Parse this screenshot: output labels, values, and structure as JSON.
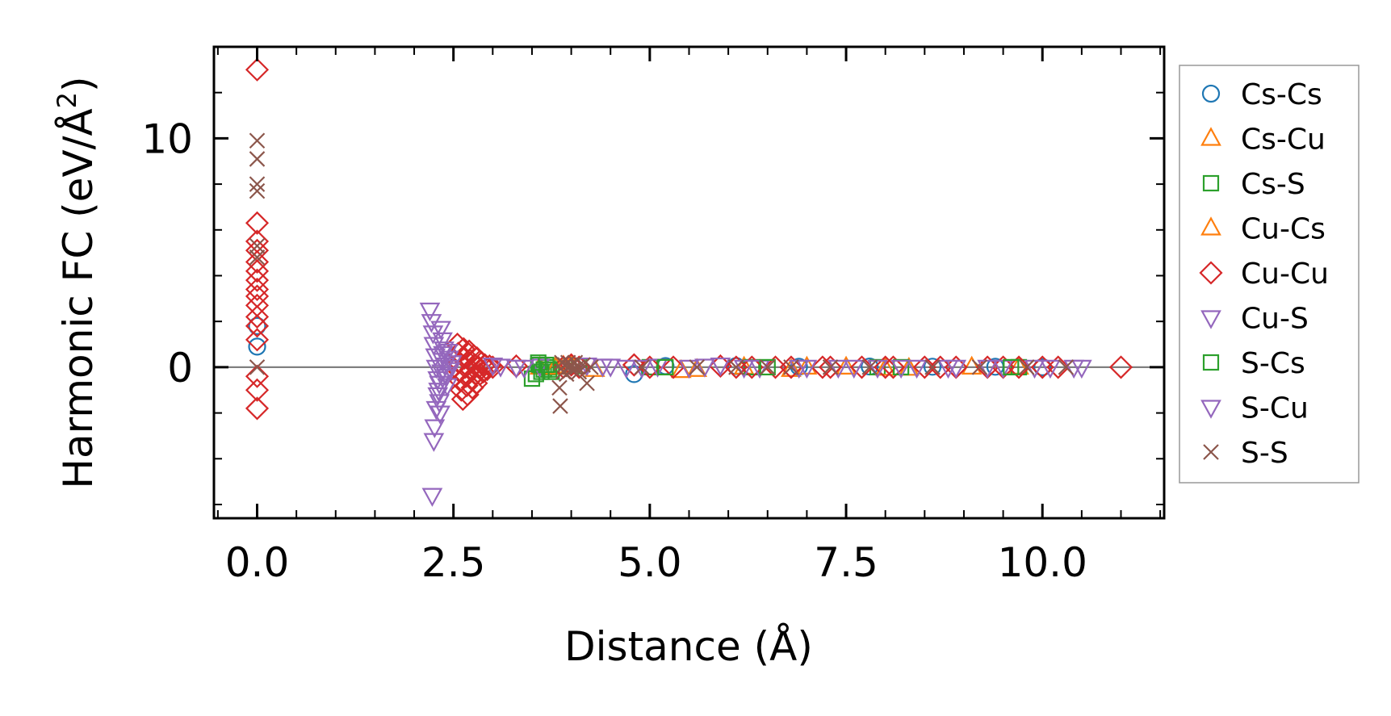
{
  "chart_data": {
    "type": "scatter",
    "xlabel": "Distance (Å)",
    "ylabel_main": "Harmonic FC (eV/Å",
    "ylabel_sup": "2",
    "ylabel_close": ")",
    "xlim": [
      -0.55,
      11.55
    ],
    "ylim": [
      -6.6,
      14.0
    ],
    "x_ticks": [
      0.0,
      2.5,
      5.0,
      7.5,
      10.0
    ],
    "x_tick_labels": [
      "0.0",
      "2.5",
      "5.0",
      "7.5",
      "10.0"
    ],
    "y_ticks": [
      0,
      10
    ],
    "y_tick_labels": [
      "0",
      "10"
    ],
    "zero_line": true,
    "grid": false,
    "legend_position": "right",
    "series": [
      {
        "name": "Cs-Cs",
        "marker": "circle",
        "color": "#1f77b4",
        "points": [
          [
            0,
            1.8
          ],
          [
            0,
            0.9
          ],
          [
            4.8,
            -0.3
          ],
          [
            5.2,
            0.05
          ],
          [
            6.1,
            0.05
          ],
          [
            6.9,
            0.02
          ],
          [
            7.8,
            0.03
          ],
          [
            8.6,
            0.02
          ],
          [
            9.4,
            0.02
          ],
          [
            10.0,
            0.0
          ]
        ]
      },
      {
        "name": "Cs-Cu",
        "marker": "triangle-up",
        "color": "#ff7f0e",
        "points": [
          [
            3.6,
            0.0
          ],
          [
            3.9,
            0.05
          ],
          [
            4.3,
            -0.1
          ],
          [
            5.4,
            -0.15
          ],
          [
            6.2,
            0.0
          ],
          [
            6.8,
            -0.1
          ],
          [
            7.5,
            0.0
          ],
          [
            8.3,
            -0.05
          ],
          [
            9.1,
            0.0
          ],
          [
            9.7,
            0.0
          ]
        ]
      },
      {
        "name": "Cs-S",
        "marker": "square",
        "color": "#2ca02c",
        "points": [
          [
            3.5,
            -0.5
          ],
          [
            3.55,
            -0.3
          ],
          [
            3.6,
            0.1
          ],
          [
            3.65,
            -0.1
          ],
          [
            3.7,
            0.0
          ],
          [
            3.75,
            -0.2
          ],
          [
            4.1,
            0.05
          ],
          [
            5.0,
            0.0
          ],
          [
            6.3,
            0.0
          ],
          [
            7.9,
            0.0
          ],
          [
            9.7,
            0.0
          ]
        ]
      },
      {
        "name": "Cu-Cs",
        "marker": "triangle-up",
        "color": "#ff7f0e",
        "points": [
          [
            3.8,
            0.0
          ],
          [
            4.0,
            0.1
          ],
          [
            5.6,
            -0.1
          ],
          [
            7.0,
            0.0
          ],
          [
            8.0,
            -0.05
          ]
        ]
      },
      {
        "name": "Cu-Cu",
        "marker": "diamond",
        "color": "#d62728",
        "points": [
          [
            0,
            13.0
          ],
          [
            0,
            6.3
          ],
          [
            0,
            5.5
          ],
          [
            0,
            5.1
          ],
          [
            0,
            4.6
          ],
          [
            0,
            4.2
          ],
          [
            0,
            3.8
          ],
          [
            0,
            3.4
          ],
          [
            0,
            3.1
          ],
          [
            0,
            2.7
          ],
          [
            0,
            2.2
          ],
          [
            0,
            1.8
          ],
          [
            0,
            1.2
          ],
          [
            0,
            -0.4
          ],
          [
            0,
            -1.0
          ],
          [
            0,
            -1.8
          ],
          [
            2.55,
            1.0
          ],
          [
            2.56,
            0.6
          ],
          [
            2.57,
            0.2
          ],
          [
            2.58,
            -0.2
          ],
          [
            2.59,
            -0.6
          ],
          [
            2.6,
            -1.0
          ],
          [
            2.62,
            -1.4
          ],
          [
            2.63,
            0.8
          ],
          [
            2.64,
            0.4
          ],
          [
            2.65,
            0.0
          ],
          [
            2.66,
            -0.4
          ],
          [
            2.67,
            -0.8
          ],
          [
            2.68,
            -1.2
          ],
          [
            2.7,
            0.7
          ],
          [
            2.71,
            0.3
          ],
          [
            2.72,
            -0.1
          ],
          [
            2.73,
            -0.5
          ],
          [
            2.74,
            -0.9
          ],
          [
            2.76,
            0.5
          ],
          [
            2.77,
            0.1
          ],
          [
            2.78,
            -0.3
          ],
          [
            2.79,
            -0.7
          ],
          [
            2.8,
            0.4
          ],
          [
            2.82,
            0.0
          ],
          [
            2.84,
            -0.3
          ],
          [
            2.86,
            0.2
          ],
          [
            2.88,
            -0.2
          ],
          [
            2.9,
            0.1
          ],
          [
            2.93,
            -0.1
          ],
          [
            2.96,
            0.05
          ],
          [
            3.0,
            0.0
          ],
          [
            3.3,
            0.05
          ],
          [
            3.9,
            0.0
          ],
          [
            4.0,
            0.1
          ],
          [
            4.1,
            0.0
          ],
          [
            4.8,
            0.1
          ],
          [
            5.0,
            0.0
          ],
          [
            5.3,
            0.0
          ],
          [
            5.9,
            0.05
          ],
          [
            6.1,
            0.0
          ],
          [
            6.3,
            0.0
          ],
          [
            6.6,
            0.0
          ],
          [
            6.8,
            0.0
          ],
          [
            7.2,
            0.0
          ],
          [
            7.3,
            0.0
          ],
          [
            7.7,
            0.0
          ],
          [
            8.0,
            0.0
          ],
          [
            8.1,
            0.0
          ],
          [
            8.5,
            0.0
          ],
          [
            8.7,
            0.0
          ],
          [
            8.9,
            0.0
          ],
          [
            9.3,
            0.0
          ],
          [
            9.5,
            0.0
          ],
          [
            9.7,
            0.0
          ],
          [
            10.0,
            0.0
          ],
          [
            10.2,
            0.0
          ],
          [
            11.0,
            0.0
          ]
        ]
      },
      {
        "name": "Cu-S",
        "marker": "triangle-down",
        "color": "#9467bd",
        "points": [
          [
            2.2,
            2.5
          ],
          [
            2.22,
            2.0
          ],
          [
            2.24,
            1.5
          ],
          [
            2.25,
            1.0
          ],
          [
            2.27,
            0.5
          ],
          [
            2.28,
            0.0
          ],
          [
            2.3,
            -0.5
          ],
          [
            2.31,
            -1.0
          ],
          [
            2.32,
            -1.5
          ],
          [
            2.33,
            -2.0
          ],
          [
            2.35,
            -0.2
          ],
          [
            2.36,
            0.3
          ],
          [
            2.38,
            0.8
          ],
          [
            2.4,
            -0.3
          ],
          [
            2.42,
            -0.8
          ],
          [
            2.44,
            0.4
          ],
          [
            2.46,
            -0.1
          ],
          [
            2.48,
            0.2
          ],
          [
            3.0,
            0.1
          ],
          [
            3.3,
            0.0
          ],
          [
            3.6,
            0.05
          ],
          [
            4.2,
            0.1
          ],
          [
            4.5,
            0.05
          ],
          [
            4.7,
            0.0
          ],
          [
            5.1,
            0.05
          ],
          [
            5.5,
            0.0
          ],
          [
            5.9,
            0.1
          ],
          [
            6.4,
            0.0
          ],
          [
            6.9,
            0.0
          ],
          [
            7.4,
            0.0
          ],
          [
            7.9,
            0.0
          ],
          [
            8.4,
            0.0
          ],
          [
            8.9,
            0.0
          ],
          [
            9.5,
            0.0
          ],
          [
            10.1,
            0.0
          ],
          [
            10.5,
            0.0
          ]
        ]
      },
      {
        "name": "S-Cs",
        "marker": "square",
        "color": "#2ca02c",
        "points": [
          [
            3.58,
            0.2
          ],
          [
            3.62,
            -0.2
          ],
          [
            3.68,
            0.1
          ],
          [
            3.72,
            -0.1
          ],
          [
            5.2,
            0.0
          ],
          [
            6.5,
            0.0
          ],
          [
            8.2,
            0.0
          ],
          [
            9.6,
            0.0
          ]
        ]
      },
      {
        "name": "S-Cu",
        "marker": "triangle-down",
        "color": "#9467bd",
        "points": [
          [
            2.23,
            -5.6
          ],
          [
            2.25,
            -3.2
          ],
          [
            2.26,
            -2.6
          ],
          [
            2.28,
            -1.8
          ],
          [
            2.3,
            -1.2
          ],
          [
            2.32,
            -0.7
          ],
          [
            2.34,
            1.7
          ],
          [
            2.36,
            1.2
          ],
          [
            2.37,
            0.6
          ],
          [
            2.39,
            0.1
          ],
          [
            2.41,
            -0.4
          ],
          [
            2.43,
            0.7
          ],
          [
            2.45,
            0.0
          ],
          [
            3.1,
            0.05
          ],
          [
            3.4,
            0.0
          ],
          [
            4.4,
            0.05
          ],
          [
            4.9,
            0.0
          ],
          [
            5.7,
            0.05
          ],
          [
            6.2,
            0.0
          ],
          [
            7.0,
            0.0
          ],
          [
            7.6,
            0.0
          ],
          [
            8.2,
            0.0
          ],
          [
            8.8,
            0.0
          ],
          [
            9.3,
            0.0
          ],
          [
            9.9,
            0.0
          ],
          [
            10.4,
            0.0
          ]
        ]
      },
      {
        "name": "S-S",
        "marker": "x",
        "color": "#8c564b",
        "points": [
          [
            0,
            9.9
          ],
          [
            0,
            9.1
          ],
          [
            0,
            8.0
          ],
          [
            0,
            7.7
          ],
          [
            0,
            5.3
          ],
          [
            0,
            4.8
          ],
          [
            0,
            0.0
          ],
          [
            3.85,
            -0.9
          ],
          [
            3.86,
            -1.7
          ],
          [
            3.88,
            0.2
          ],
          [
            3.9,
            -0.2
          ],
          [
            3.92,
            0.1
          ],
          [
            3.94,
            -0.3
          ],
          [
            3.96,
            0.2
          ],
          [
            3.98,
            0.0
          ],
          [
            4.0,
            0.1
          ],
          [
            4.02,
            -0.1
          ],
          [
            4.05,
            0.2
          ],
          [
            4.08,
            0.0
          ],
          [
            4.1,
            -0.2
          ],
          [
            4.15,
            0.1
          ],
          [
            4.2,
            -0.7
          ],
          [
            4.25,
            0.0
          ],
          [
            4.9,
            0.0
          ],
          [
            5.6,
            0.0
          ],
          [
            6.1,
            0.0
          ],
          [
            6.5,
            0.0
          ],
          [
            6.8,
            0.0
          ],
          [
            7.3,
            0.0
          ],
          [
            7.8,
            0.0
          ],
          [
            8.6,
            0.0
          ],
          [
            9.2,
            0.0
          ],
          [
            9.8,
            0.0
          ],
          [
            10.3,
            0.0
          ]
        ]
      }
    ]
  }
}
